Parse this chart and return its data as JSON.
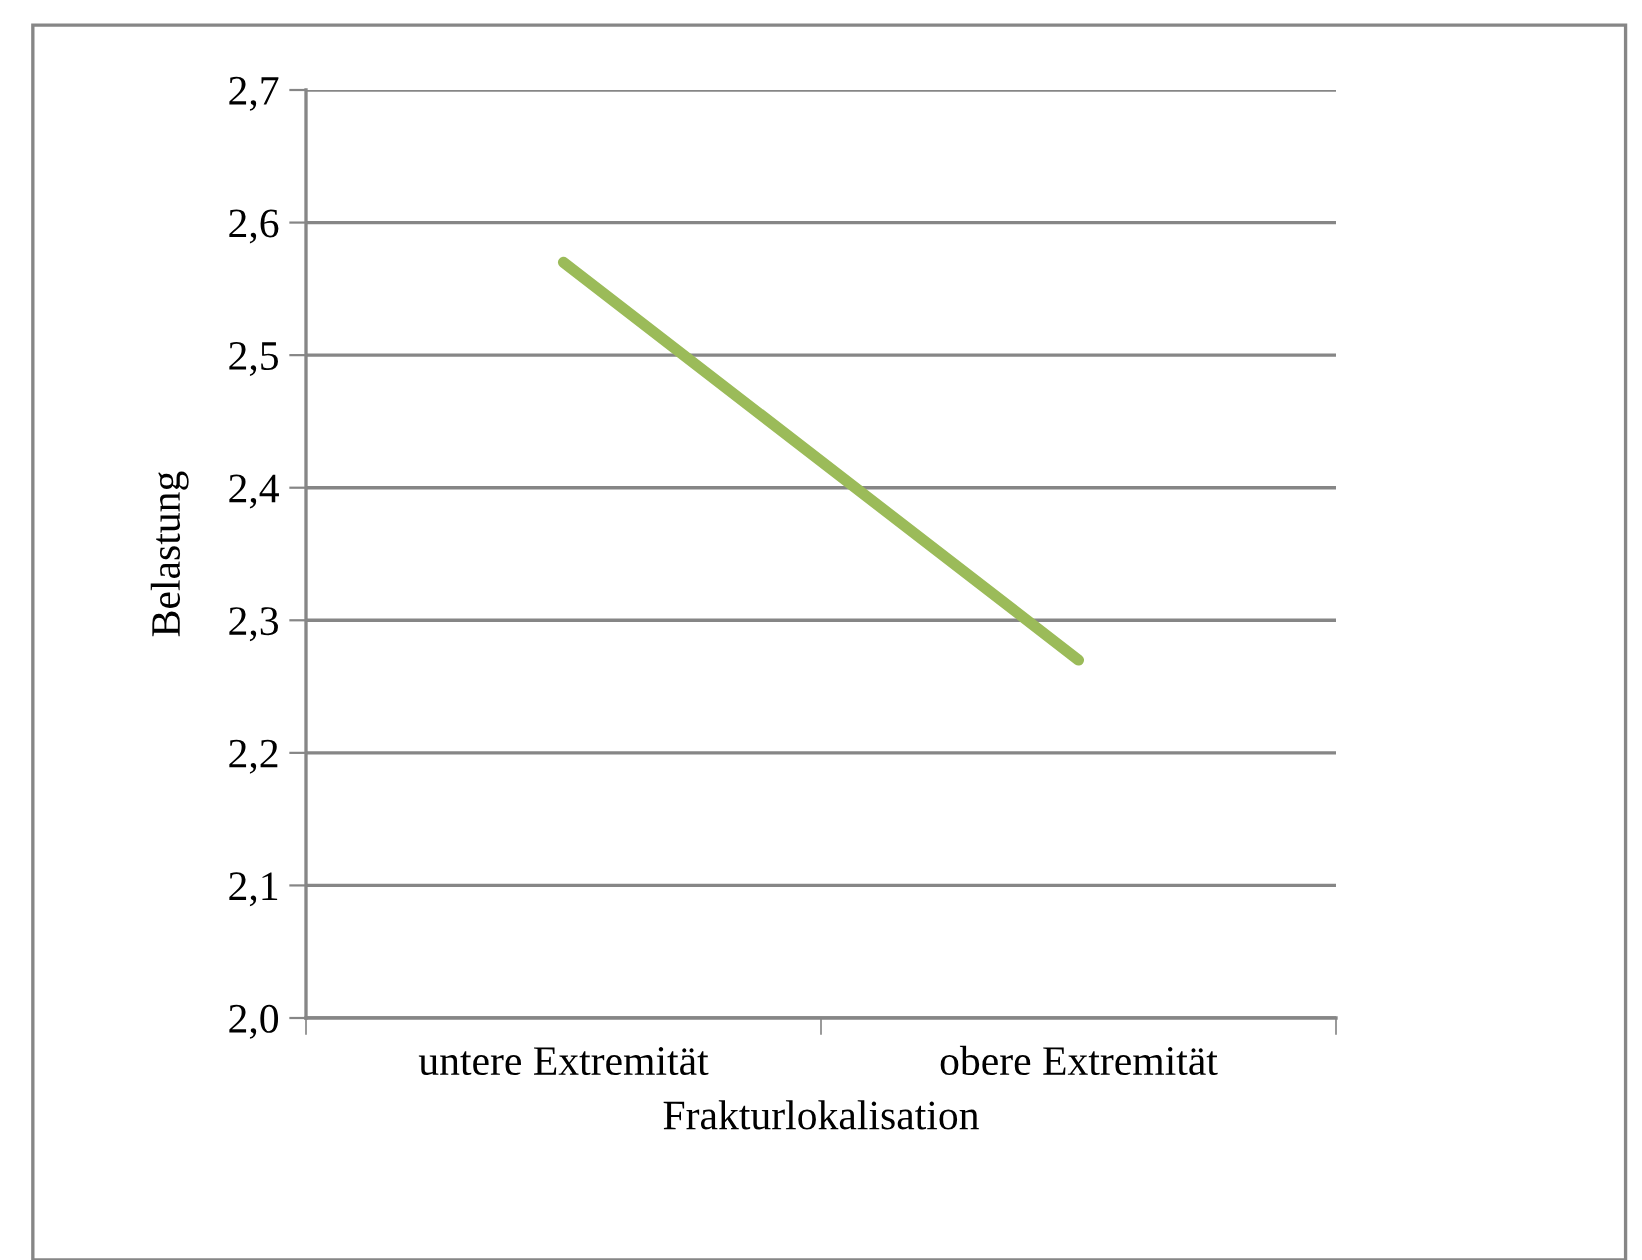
{
  "chart_data": {
    "type": "line",
    "xlabel": "Frakturlokalisation",
    "ylabel": "Belastung",
    "categories": [
      "untere Extremität",
      "obere Extremität"
    ],
    "series": [
      {
        "color": "#9bbb59",
        "values": [
          2.57,
          2.27
        ]
      }
    ],
    "ylim": [
      2.0,
      2.7
    ],
    "yticks": [
      {
        "value": 2.0,
        "label": "2,0"
      },
      {
        "value": 2.1,
        "label": "2,1"
      },
      {
        "value": 2.2,
        "label": "2,2"
      },
      {
        "value": 2.3,
        "label": "2,3"
      },
      {
        "value": 2.4,
        "label": "2,4"
      },
      {
        "value": 2.5,
        "label": "2,5"
      },
      {
        "value": 2.6,
        "label": "2,6"
      },
      {
        "value": 2.7,
        "label": "2,7"
      }
    ],
    "grid": "y",
    "marker": "none",
    "line_style": "solid"
  }
}
